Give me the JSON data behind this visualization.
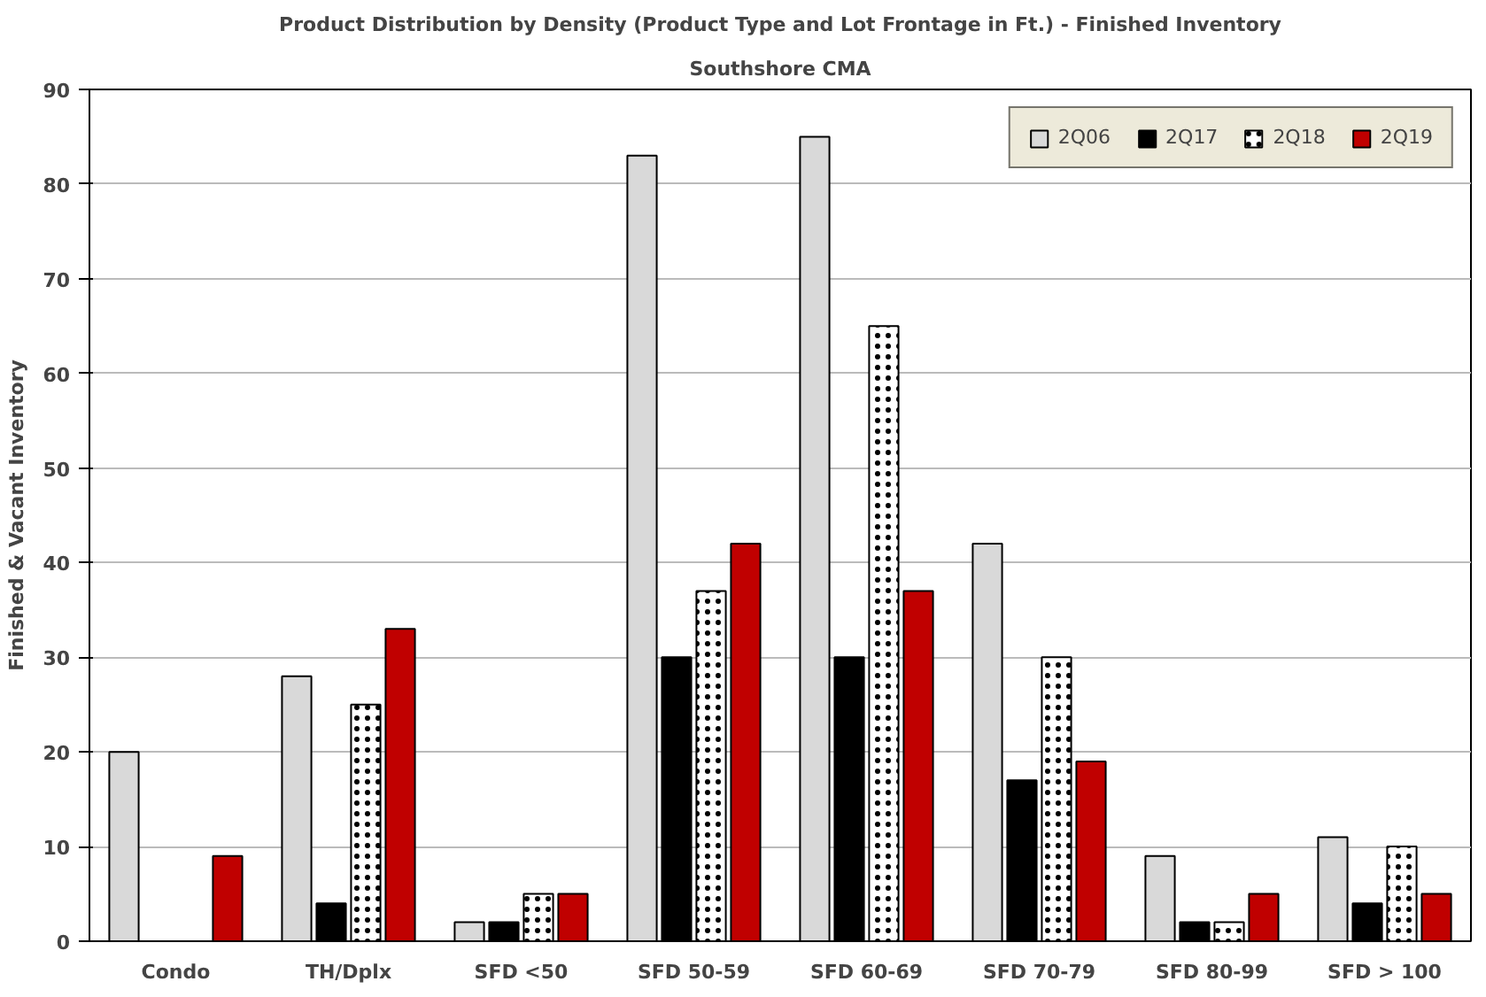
{
  "chart_data": {
    "type": "bar",
    "title": "Product Distribution by Density (Product Type and Lot Frontage in Ft.) - Finished Inventory",
    "subtitle": "Southshore CMA",
    "ylabel": "Finished & Vacant Inventory",
    "categories": [
      "Condo",
      "TH/Dplx",
      "SFD <50",
      "SFD 50-59",
      "SFD 60-69",
      "SFD 70-79",
      "SFD 80-99",
      "SFD > 100"
    ],
    "series": [
      {
        "name": "2Q06",
        "color": "#d9d9d9",
        "values": [
          20,
          28,
          2,
          83,
          85,
          42,
          9,
          11
        ]
      },
      {
        "name": "2Q17",
        "color": "#000000",
        "values": [
          null,
          4,
          2,
          30,
          30,
          17,
          2,
          4
        ]
      },
      {
        "name": "2Q18",
        "color": "#ffffff",
        "values": [
          null,
          25,
          5,
          37,
          65,
          30,
          2,
          10
        ]
      },
      {
        "name": "2Q19",
        "color": "#c00000",
        "values": [
          9,
          33,
          5,
          42,
          37,
          19,
          5,
          5
        ]
      }
    ],
    "ylim": [
      0,
      90
    ],
    "yticks": [
      0,
      10,
      20,
      30,
      40,
      50,
      60,
      70,
      80,
      90
    ],
    "grid": "y",
    "legend": "top right"
  }
}
